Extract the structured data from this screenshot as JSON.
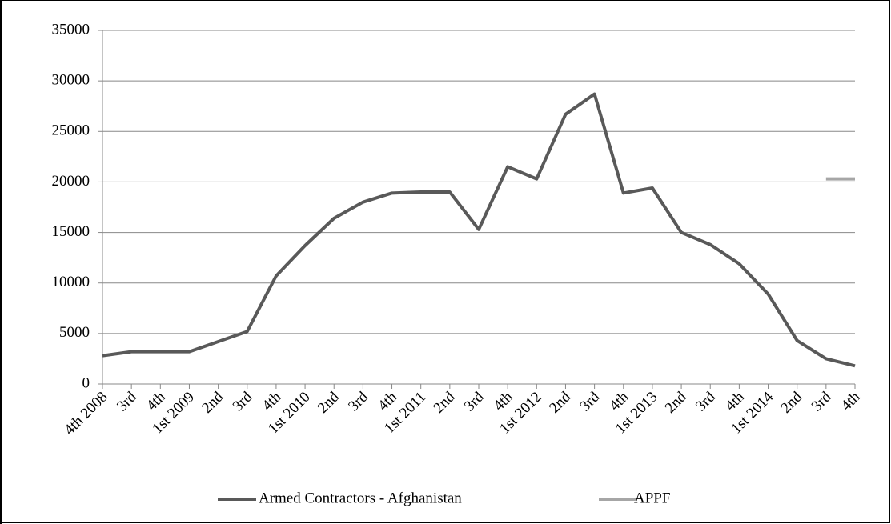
{
  "chart_data": {
    "type": "line",
    "categories": [
      "4th 2008",
      "3rd",
      "4th",
      "1st 2009",
      "2nd",
      "3rd",
      "4th",
      "1st 2010",
      "2nd",
      "3rd",
      "4th",
      "1st 2011",
      "2nd",
      "3rd",
      "4th",
      "1st 2012",
      "2nd",
      "3rd",
      "4th",
      "1st 2013",
      "2nd",
      "3rd",
      "4th",
      "1st 2014",
      "2nd",
      "3rd",
      "4th"
    ],
    "series": [
      {
        "name": "Armed Contractors - Afghanistan",
        "color": "#595959",
        "values": [
          2800,
          3200,
          3200,
          3200,
          4200,
          5200,
          10700,
          13700,
          16400,
          18000,
          18900,
          19000,
          19000,
          15300,
          21500,
          20300,
          26700,
          28700,
          18900,
          19400,
          15000,
          13800,
          11900,
          8900,
          4300,
          2500,
          1800
        ]
      },
      {
        "name": "APPF",
        "color": "#a6a6a6",
        "values": [
          null,
          null,
          null,
          null,
          null,
          null,
          null,
          null,
          null,
          null,
          null,
          null,
          null,
          null,
          null,
          null,
          null,
          null,
          null,
          null,
          null,
          null,
          null,
          null,
          null,
          20300,
          20300
        ]
      }
    ],
    "ylim": [
      0,
      35000
    ],
    "yticks": [
      0,
      5000,
      10000,
      15000,
      20000,
      25000,
      30000,
      35000
    ],
    "grid": true,
    "legend": "bottom"
  }
}
